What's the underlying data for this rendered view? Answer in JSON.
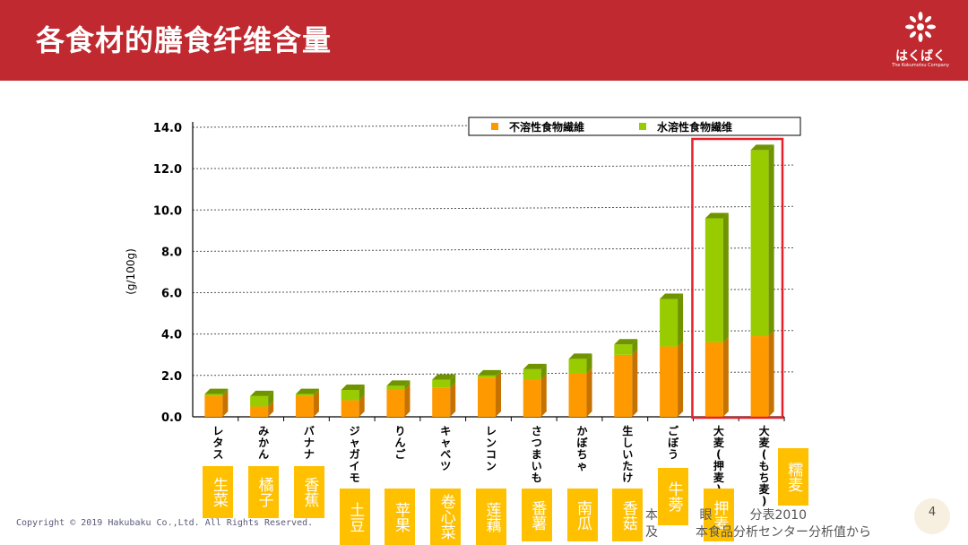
{
  "header": {
    "title": "各食材的膳食纤维含量",
    "logo_text": "はくばく",
    "logo_sub": "The Kokumotsu Company"
  },
  "chart_data": {
    "type": "bar",
    "stacked": true,
    "ylabel": "(g/100g)",
    "ylim": [
      0,
      14
    ],
    "yticks": [
      "0.0",
      "2.0",
      "4.0",
      "6.0",
      "8.0",
      "10.0",
      "12.0",
      "14.0"
    ],
    "categories": [
      "レタス",
      "みかん",
      "バナナ",
      "ジャガイモ",
      "りんご",
      "キャベツ",
      "レンコン",
      "さつまいも",
      "かぼちゃ",
      "生しいたけ",
      "ごぼう",
      "大麦(押麦)",
      "大麦(もち麦)"
    ],
    "series": [
      {
        "name": "不溶性食物繊維",
        "color": "#ff9900",
        "values": [
          1.0,
          0.5,
          1.0,
          0.8,
          1.3,
          1.4,
          1.9,
          1.8,
          2.1,
          3.0,
          3.4,
          3.6,
          3.9
        ]
      },
      {
        "name": "水溶性食物繊维",
        "color": "#99cc00",
        "values": [
          0.1,
          0.5,
          0.1,
          0.5,
          0.2,
          0.4,
          0.1,
          0.5,
          0.7,
          0.5,
          2.3,
          6.0,
          9.0
        ]
      }
    ],
    "legend_position": "top-right",
    "grid": true,
    "highlight_categories": [
      "大麦(押麦)",
      "大麦(もち麦)"
    ]
  },
  "chinese_labels": [
    "生菜",
    "橘子",
    "香蕉",
    "土豆",
    "苹果",
    "卷心菜",
    "莲藕",
    "番薯",
    "南瓜",
    "香菇",
    "牛蒡",
    "押麦",
    "糯麦"
  ],
  "footer": {
    "copyright": "Copyright © 2019 Hakubaku Co.,Ltd. All Rights Reserved.",
    "source_line1": "本　　　 眼　　　分表2010",
    "source_line2": "及　　　本食品分析センター分析值から",
    "page_number": "4"
  },
  "colors": {
    "header": "#c0292f",
    "label_bg": "#ffc000",
    "highlight": "#e8202a"
  }
}
